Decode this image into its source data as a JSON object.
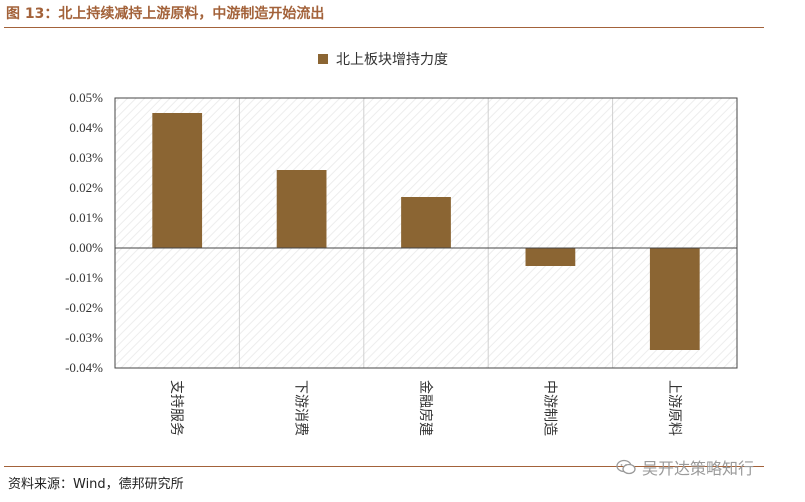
{
  "figure": {
    "title": "图 13：北上持续减持上游原料，中游制造开始流出",
    "source": "资料来源：Wind，德邦研究所",
    "watermark": "吴开达策略知行"
  },
  "colors": {
    "bar": "#8b6533",
    "accent": "#a3623a"
  },
  "chart_data": {
    "type": "bar",
    "categories": [
      "支持服务",
      "下游消费",
      "金融房建",
      "中游制造",
      "上游原料"
    ],
    "series": [
      {
        "name": "北上板块增持力度",
        "values": [
          0.045,
          0.026,
          0.017,
          -0.006,
          -0.034
        ]
      }
    ],
    "ylim": [
      -0.04,
      0.05
    ],
    "yticks": [
      "0.05%",
      "0.04%",
      "0.03%",
      "0.02%",
      "0.01%",
      "0.00%",
      "-0.01%",
      "-0.02%",
      "-0.03%",
      "-0.04%"
    ],
    "ytick_values": [
      0.05,
      0.04,
      0.03,
      0.02,
      0.01,
      0.0,
      -0.01,
      -0.02,
      -0.03,
      -0.04
    ],
    "y_unit": "%",
    "legend_position": "top-center",
    "grid": "vertical-category-dividers"
  }
}
